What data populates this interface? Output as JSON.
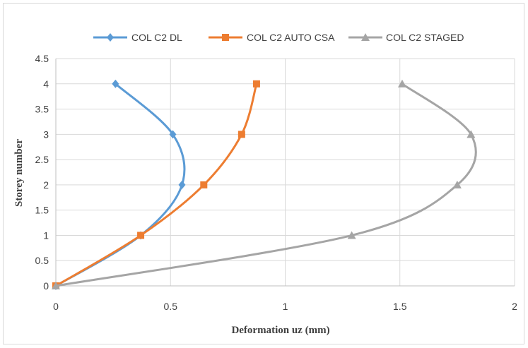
{
  "chart_data": {
    "type": "line",
    "title": "",
    "xlabel": "Deformation uz (mm)",
    "ylabel": "Storey number",
    "xlim": [
      0,
      2
    ],
    "ylim": [
      0,
      4.5
    ],
    "x_ticks": [
      "0",
      "0.5",
      "1",
      "1.5",
      "2"
    ],
    "y_ticks": [
      "0",
      "0.5",
      "1",
      "1.5",
      "2",
      "2.5",
      "3",
      "3.5",
      "4",
      "4.5"
    ],
    "grid": true,
    "legend_position": "top",
    "series": [
      {
        "name": "COL C2 DL",
        "color": "#5B9BD5",
        "marker": "diamond",
        "points": [
          [
            0,
            0
          ],
          [
            0.37,
            1
          ],
          [
            0.55,
            2
          ],
          [
            0.51,
            3
          ],
          [
            0.26,
            4
          ]
        ]
      },
      {
        "name": "COL C2 AUTO CSA",
        "color": "#ED7D31",
        "marker": "square",
        "points": [
          [
            0,
            0
          ],
          [
            0.37,
            1
          ],
          [
            0.645,
            2
          ],
          [
            0.81,
            3
          ],
          [
            0.875,
            4
          ]
        ]
      },
      {
        "name": "COL C2 STAGED",
        "color": "#A5A5A5",
        "marker": "triangle",
        "points": [
          [
            0,
            0
          ],
          [
            1.29,
            1
          ],
          [
            1.75,
            2
          ],
          [
            1.81,
            3
          ],
          [
            1.51,
            4
          ]
        ]
      }
    ]
  }
}
